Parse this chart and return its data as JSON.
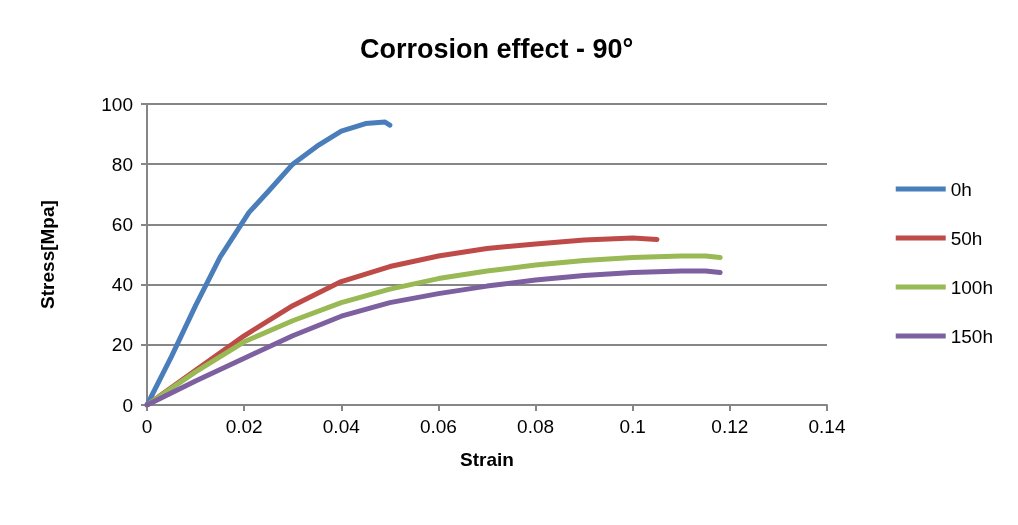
{
  "chart_data": {
    "type": "line",
    "title": "Corrosion effect - 90°",
    "xlabel": "Strain",
    "ylabel": "Stress[Mpa]",
    "xlim": [
      0,
      0.14
    ],
    "xticks": [
      0,
      0.02,
      0.04,
      0.06,
      0.08,
      0.1,
      0.12,
      0.14
    ],
    "ylim": [
      0,
      100
    ],
    "yticks": [
      0,
      20,
      40,
      60,
      80,
      100
    ],
    "grid": "y",
    "legend": "right",
    "marker": "none",
    "line_style": "solid",
    "series": [
      {
        "name": "0h",
        "color": "#4a7ebb",
        "x": [
          0,
          0.005,
          0.01,
          0.015,
          0.021,
          0.025,
          0.03,
          0.035,
          0.04,
          0.045,
          0.049,
          0.05
        ],
        "values": [
          0,
          16,
          33,
          49,
          64,
          71,
          80,
          86,
          91,
          93.5,
          94,
          93
        ]
      },
      {
        "name": "50h",
        "color": "#be4b48",
        "x": [
          0,
          0.01,
          0.02,
          0.03,
          0.04,
          0.05,
          0.06,
          0.07,
          0.08,
          0.09,
          0.1,
          0.105
        ],
        "values": [
          0,
          11.5,
          23,
          33,
          41,
          46,
          49.5,
          52,
          53.5,
          54.8,
          55.5,
          55
        ]
      },
      {
        "name": "100h",
        "color": "#98b954",
        "x": [
          0,
          0.01,
          0.02,
          0.03,
          0.04,
          0.05,
          0.06,
          0.07,
          0.08,
          0.09,
          0.1,
          0.11,
          0.115,
          0.118
        ],
        "values": [
          0,
          11,
          21,
          28,
          34,
          38.5,
          42,
          44.5,
          46.5,
          48,
          49,
          49.5,
          49.5,
          49
        ]
      },
      {
        "name": "150h",
        "color": "#7d60a0",
        "x": [
          0,
          0.01,
          0.022,
          0.03,
          0.04,
          0.05,
          0.06,
          0.07,
          0.08,
          0.09,
          0.1,
          0.11,
          0.115,
          0.118
        ],
        "values": [
          0,
          8,
          17,
          23,
          29.5,
          34,
          37,
          39.5,
          41.5,
          43,
          44,
          44.5,
          44.5,
          44
        ]
      }
    ]
  }
}
